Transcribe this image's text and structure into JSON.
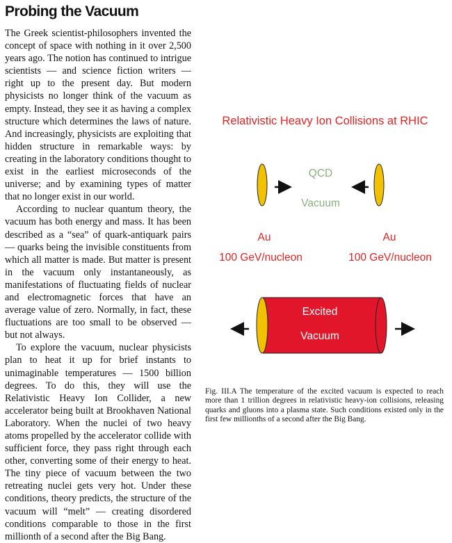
{
  "article": {
    "title": "Probing the Vacuum",
    "paragraphs": [
      "The Greek scientist-philosophers invented the concept of space with nothing in it over 2,500 years ago. The notion has continued to intrigue scientists — and science fiction writers — right up to the present day. But modern physicists no longer think of the vacuum as empty. Instead, they see it as having a complex structure which determines the laws of nature. And increasingly, physicists are exploiting that hidden structure in remarkable ways: by creating in the laboratory conditions thought to exist in the earliest microseconds of the universe; and by examining types of matter that no longer exist in our world.",
      "According to nuclear quantum theory, the vacuum has both energy and mass. It has been described as a “sea” of quark-antiquark pairs — quarks being the invisible constituents from which all matter is made. But matter is present in the vacuum only instantaneously, as manifestations of fluctuating fields of nuclear and electromagnetic forces that have an average value of zero. Normally, in fact, these fluctuations are too small to be observed — but not always.",
      "To explore the vacuum, nuclear physicists plan to heat it up for brief instants to unimaginable temperatures — 1500 billion degrees. To do this, they will use the Relativistic Heavy Ion Collider, a new accelerator being built at Brookhaven National Laboratory. When the nuclei of two heavy atoms propelled by the accelerator collide with sufficient force, they pass right through each other, converting some of their energy to heat. The tiny piece of vacuum between the two retreating nuclei gets very hot. Under these conditions, theory predicts, the structure of the vacuum will “melt” — creating disordered conditions comparable to those in the first millionth of a second after the Big Bang."
    ]
  },
  "figure": {
    "title": "Relativistic Heavy Ion Collisions at RHIC",
    "qcd_label": "QCD",
    "vacuum_label": "Vacuum",
    "left_nucleus": {
      "element": "Au",
      "energy": "100 GeV/nucleon"
    },
    "right_nucleus": {
      "element": "Au",
      "energy": "100 GeV/nucleon"
    },
    "excited_label": "Excited",
    "excited_vacuum_label": "Vacuum",
    "colors": {
      "red": "#e02424",
      "yellow": "#f2c200",
      "green": "#8ab07c",
      "cylinder": "#e1162a"
    }
  },
  "caption": {
    "fig_number": "Fig. III.A",
    "text": "The temperature of the excited vacuum is expected to reach more than 1 trillion degrees in relativistic heavy-ion collisions, releasing quarks and gluons into a plasma state. Such conditions existed only in the first few millionths of a second after the Big Bang."
  }
}
